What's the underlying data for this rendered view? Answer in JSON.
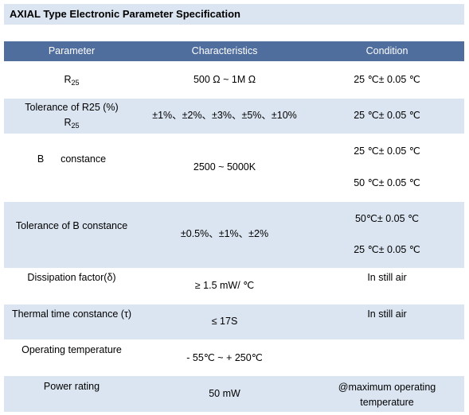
{
  "title": "AXIAL Type Electronic Parameter Specification",
  "table": {
    "header": [
      "Parameter",
      "Characteristics",
      "Condition"
    ],
    "rows": [
      {
        "parameter": [
          {
            "text": "R",
            "sub": "25"
          }
        ],
        "characteristics": "500 Ω ~ 1M Ω",
        "condition": [
          "25 ℃± 0.05 ℃"
        ]
      },
      {
        "parameter": [
          {
            "text": "Tolerance of R25 (%)"
          },
          {
            "text": "R",
            "sub": "25"
          }
        ],
        "characteristics": "±1%、±2%、±3%、±5%、±10%",
        "condition": [
          "25 ℃± 0.05 ℃"
        ]
      },
      {
        "parameter": [
          {
            "text": "B      constance"
          }
        ],
        "characteristics": "2500 ~ 5000K",
        "condition": [
          "25 ℃± 0.05 ℃",
          "50 ℃± 0.05 ℃"
        ]
      },
      {
        "parameter": [
          {
            "text": "Tolerance of B constance"
          }
        ],
        "characteristics": "±0.5%、±1%、±2%",
        "condition": [
          "50℃± 0.05 ℃",
          "25 ℃± 0.05 ℃"
        ]
      },
      {
        "parameter": [
          {
            "text": "Dissipation factor(δ)"
          }
        ],
        "characteristics": "≥ 1.5 mW/ ℃",
        "condition": [
          "In still air"
        ]
      },
      {
        "parameter": [
          {
            "text": "Thermal time constance (τ)"
          }
        ],
        "characteristics": "≤ 17S",
        "condition": [
          "In still air"
        ]
      },
      {
        "parameter": [
          {
            "text": "Operating temperature"
          }
        ],
        "characteristics": "- 55℃ ~ + 250℃",
        "condition": []
      },
      {
        "parameter": [
          {
            "text": "Power rating"
          }
        ],
        "characteristics": "50 mW",
        "condition": [
          "@maximum operating temperature"
        ]
      }
    ]
  }
}
